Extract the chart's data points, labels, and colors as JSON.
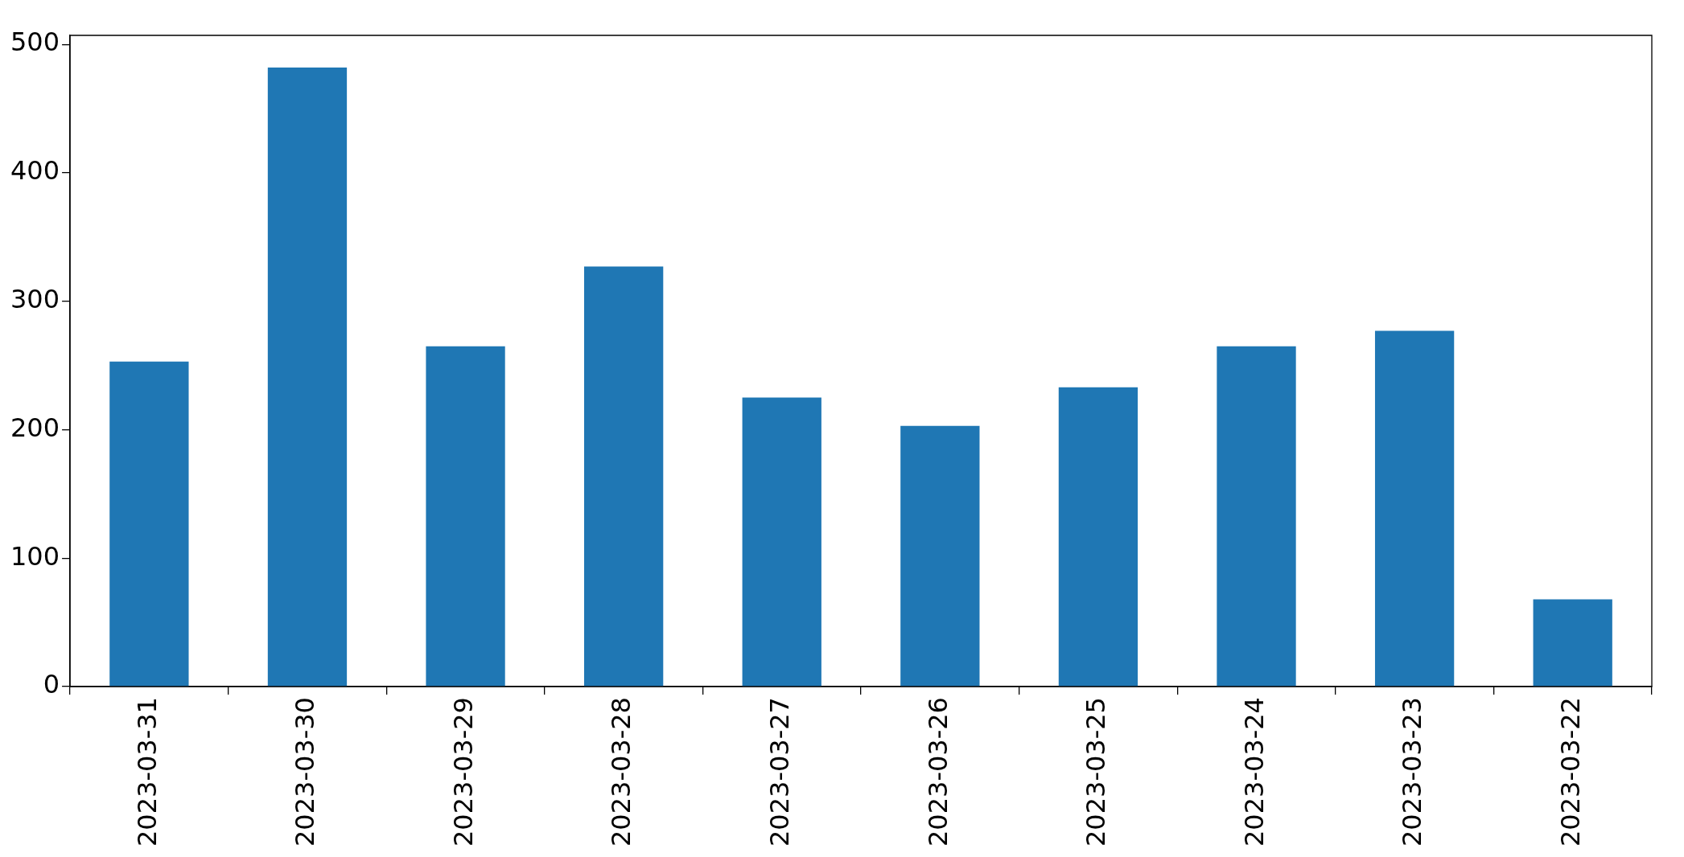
{
  "chart_data": {
    "type": "bar",
    "categories": [
      "2023-03-31",
      "2023-03-30",
      "2023-03-29",
      "2023-03-28",
      "2023-03-27",
      "2023-03-26",
      "2023-03-25",
      "2023-03-24",
      "2023-03-23",
      "2023-03-22"
    ],
    "values": [
      253,
      482,
      265,
      327,
      225,
      203,
      233,
      265,
      277,
      68
    ],
    "color": "#1f77b4",
    "ylim": [
      0,
      507
    ],
    "yticks": [
      0,
      100,
      200,
      300,
      400,
      500
    ],
    "grid": false,
    "legend": false
  }
}
